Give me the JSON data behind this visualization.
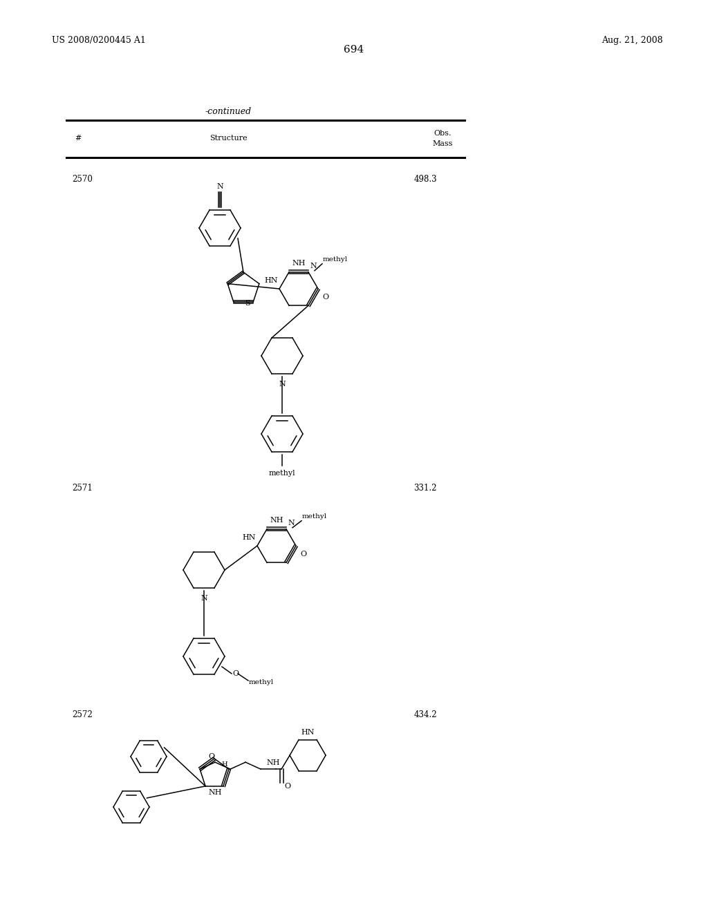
{
  "page_number": "694",
  "patent_number": "US 2008/0200445 A1",
  "patent_date": "Aug. 21, 2008",
  "continued_label": "-continued",
  "col_hash": "#",
  "col_structure": "Structure",
  "col_obs": "Obs.",
  "col_mass": "Mass",
  "compounds": [
    {
      "id": "2570",
      "mass": "498.3"
    },
    {
      "id": "2571",
      "mass": "331.2"
    },
    {
      "id": "2572",
      "mass": "434.2"
    }
  ],
  "background_color": "#ffffff",
  "text_color": "#000000"
}
